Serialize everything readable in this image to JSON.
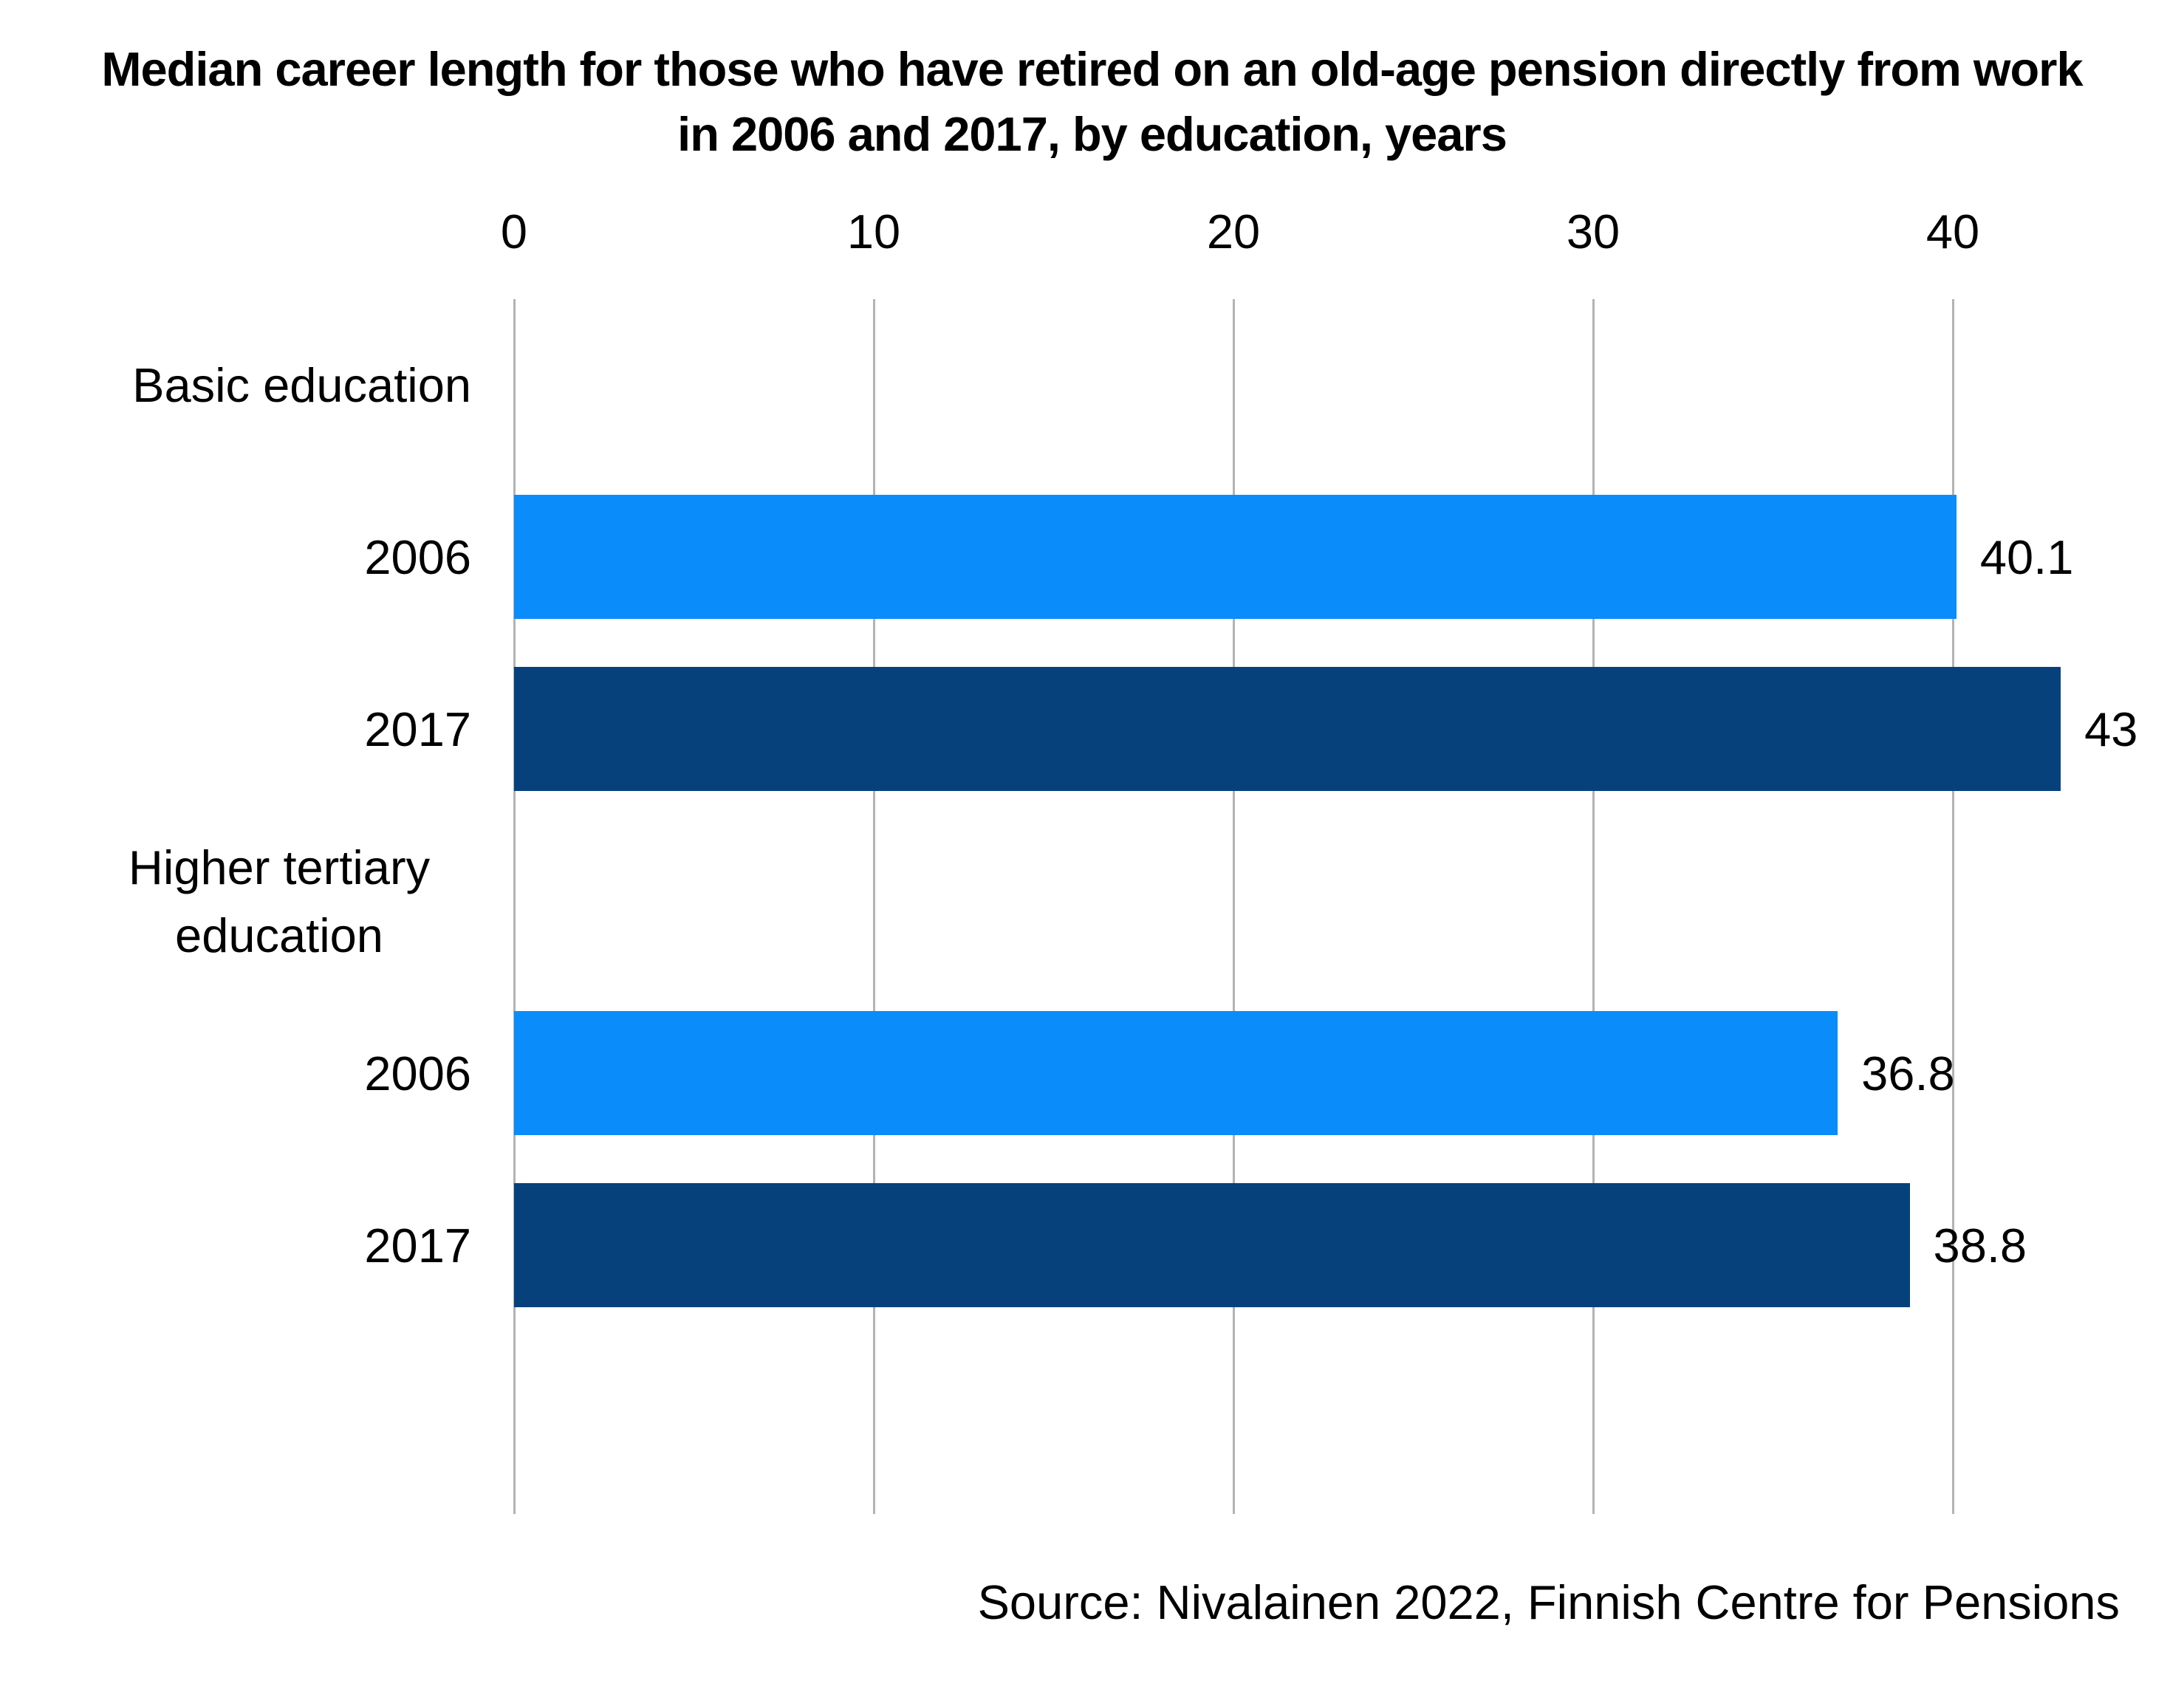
{
  "title": {
    "line1": "Median career length for those who have retired on an old-age pension directly from work",
    "line2": "in 2006 and 2017, by education, years"
  },
  "source": "Source: Nivalainen 2022, Finnish Centre for Pensions",
  "chart_data": {
    "type": "bar",
    "orientation": "horizontal",
    "title": "Median career length for those who have retired on an old-age pension directly from work in 2006 and 2017, by education, years",
    "xlabel": "years",
    "ylabel": "",
    "xlim": [
      0,
      46
    ],
    "xticks": [
      0,
      10,
      20,
      30,
      40
    ],
    "grid": true,
    "legend": "none",
    "categories": [
      "Basic education",
      "Higher tertiary education"
    ],
    "series": [
      {
        "name": "2006",
        "values": [
          40.1,
          36.8
        ],
        "color": "#0a8cfb"
      },
      {
        "name": "2017",
        "values": [
          43,
          38.8
        ],
        "color": "#06417b"
      }
    ],
    "series_colors": {
      "2006": "#0a8cfb",
      "2017": "#06417b"
    },
    "rows": [
      {
        "kind": "group-label",
        "label": "Basic education"
      },
      {
        "kind": "bar",
        "label": "2006",
        "series": "2006",
        "value": 40.1,
        "display": "40.1"
      },
      {
        "kind": "bar",
        "label": "2017",
        "series": "2017",
        "value": 43,
        "display": "43"
      },
      {
        "kind": "group-label",
        "label": "Higher tertiary education"
      },
      {
        "kind": "bar",
        "label": "2006",
        "series": "2006",
        "value": 36.8,
        "display": "36.8"
      },
      {
        "kind": "bar",
        "label": "2017",
        "series": "2017",
        "value": 38.8,
        "display": "38.8"
      }
    ]
  },
  "style": {
    "gridline_color": "#b3b3b3",
    "text_color": "#000000",
    "background": "#ffffff"
  }
}
